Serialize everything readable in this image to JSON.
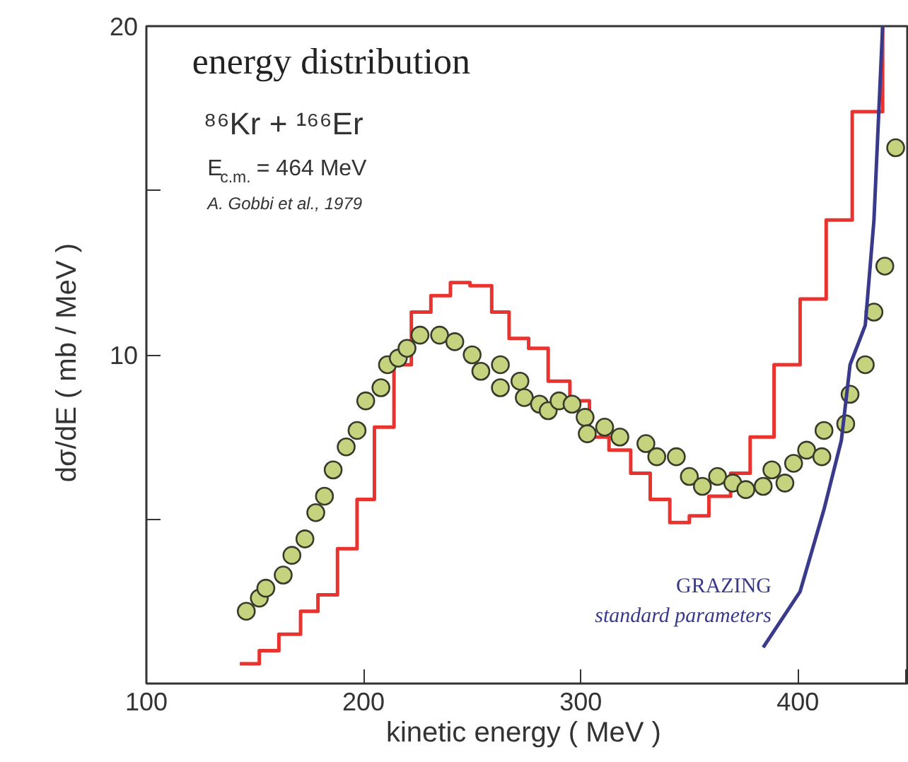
{
  "chart_data": {
    "type": "scatter",
    "title": "energy  distribution",
    "xlabel": "kinetic energy  ( MeV )",
    "ylabel": "dσ/dE   ( mb / MeV )",
    "annotations": [
      "⁸⁶Kr + ¹⁶⁶Er",
      "E$_{c.m.}$ = 464 MeV",
      "A. Gobbi et al., 1979",
      "standard parameters"
    ],
    "xlim": [
      100,
      451
    ],
    "xticks": [
      100,
      200,
      300,
      400,
      {
        "value": 450,
        "label": null
      }
    ],
    "ylim": [
      0,
      20
    ],
    "yticks": [
      {
        "value": 5,
        "label": null
      },
      10,
      {
        "value": 15,
        "label": null
      },
      20
    ],
    "grid": false,
    "series": [
      {
        "type": "step",
        "color": "#e8332f",
        "x": [
          143,
          152,
          161,
          171,
          179,
          188,
          197,
          205,
          214,
          222,
          231,
          240,
          249,
          259,
          267,
          276,
          285,
          295,
          304,
          313,
          323,
          332,
          341,
          350,
          359,
          369,
          378,
          389,
          401,
          413,
          425,
          439
        ],
        "values": [
          0.6,
          1.0,
          1.5,
          2.2,
          2.7,
          4.1,
          5.6,
          7.8,
          9.7,
          11.3,
          11.8,
          12.2,
          12.1,
          11.3,
          10.5,
          10.2,
          9.2,
          8.6,
          7.5,
          7.1,
          6.4,
          5.6,
          4.9,
          5.1,
          5.7,
          6.4,
          7.5,
          9.7,
          11.7,
          14.1,
          17.4,
          20
        ]
      },
      {
        "marker": "circle",
        "color": "#c5d37f",
        "x": [
          146,
          152,
          155,
          163,
          167,
          173,
          178,
          182,
          186,
          192,
          197,
          201,
          208,
          211,
          216,
          220,
          226,
          235,
          242,
          250,
          254,
          263,
          263,
          272,
          274,
          281,
          285,
          290,
          296,
          302,
          303,
          311,
          318,
          330,
          335,
          344,
          350,
          356,
          363,
          370,
          376,
          384,
          388,
          394,
          398,
          404,
          411,
          412,
          422,
          424,
          431,
          435,
          440,
          445
        ],
        "values": [
          2.2,
          2.6,
          2.9,
          3.3,
          3.9,
          4.4,
          5.2,
          5.7,
          6.5,
          7.2,
          7.7,
          8.6,
          9.0,
          9.7,
          9.9,
          10.2,
          10.6,
          10.6,
          10.4,
          10.0,
          9.5,
          9.7,
          9.0,
          9.2,
          8.7,
          8.5,
          8.3,
          8.6,
          8.5,
          8.1,
          7.6,
          7.8,
          7.5,
          7.3,
          6.9,
          6.9,
          6.3,
          6.0,
          6.3,
          6.1,
          5.9,
          6.0,
          6.5,
          6.1,
          6.7,
          7.1,
          6.9,
          7.7,
          7.9,
          8.8,
          9.7,
          11.3,
          12.7,
          16.3
        ]
      },
      {
        "type": "line",
        "name": "GRAZING",
        "color": "#3a3a8c",
        "x": [
          384,
          401,
          412,
          420,
          424,
          431,
          435,
          439
        ],
        "values": [
          1.1,
          2.8,
          5.3,
          7.4,
          9.7,
          10.9,
          14.1,
          20
        ]
      }
    ]
  }
}
